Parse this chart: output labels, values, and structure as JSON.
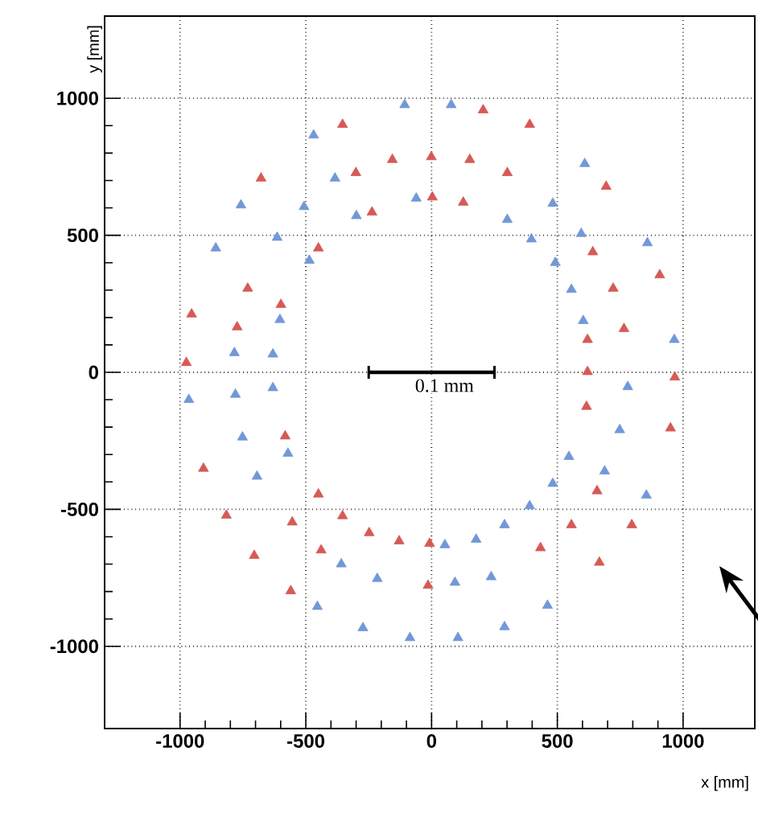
{
  "chart_data": {
    "type": "scatter",
    "xlabel": "x [mm]",
    "ylabel": "y [mm]",
    "annotations": [
      "0.1 mm"
    ],
    "xlim": [
      -1300,
      1285
    ],
    "ylim": [
      -1300,
      1300
    ],
    "xticks": [
      -1000,
      -500,
      0,
      500,
      1000
    ],
    "yticks": [
      -1000,
      -500,
      0,
      500,
      1000
    ],
    "grid": true,
    "marker": "triangle",
    "series": [
      {
        "color": "#d65a56",
        "x": [
          -354,
          -156,
          -1,
          -678,
          -301,
          3,
          -237,
          -450,
          -731,
          -954,
          -599,
          -773,
          -975,
          -582,
          -907,
          -450,
          -816,
          -554,
          -354,
          -248,
          -129,
          -8,
          -439,
          -705,
          -14,
          -560,
          620,
          967,
          616,
          950,
          658,
          556,
          796,
          433,
          667,
          205,
          390,
          152,
          301,
          694,
          126,
          641,
          907,
          722,
          620,
          765
        ],
        "values": [
          904,
          776,
          786,
          708,
          728,
          639,
          584,
          453,
          306,
          212,
          247,
          165,
          35,
          -233,
          -351,
          -445,
          -522,
          -547,
          -524,
          -586,
          -616,
          -625,
          -649,
          -669,
          -778,
          -798,
          2,
          -18,
          -125,
          -204,
          -433,
          -557,
          -557,
          -641,
          -694,
          957,
          904,
          776,
          728,
          678,
          620,
          439,
          355,
          306,
          119,
          159
        ]
      },
      {
        "color": "#7198d8",
        "x": [
          -107,
          -469,
          -384,
          -758,
          -507,
          -61,
          -299,
          -614,
          -858,
          -486,
          -603,
          -784,
          -631,
          -965,
          -780,
          -631,
          -752,
          -571,
          -694,
          53,
          -359,
          -216,
          93,
          -454,
          -273,
          -86,
          780,
          748,
          546,
          688,
          482,
          854,
          390,
          290,
          177,
          237,
          461,
          290,
          105,
          78,
          609,
          482,
          301,
          397,
          595,
          858,
          492,
          556,
          603,
          965
        ],
        "values": [
          976,
          865,
          708,
          610,
          604,
          635,
          571,
          492,
          453,
          408,
          192,
          71,
          66,
          -100,
          -81,
          -57,
          -237,
          -296,
          -380,
          -630,
          -700,
          -753,
          -767,
          -855,
          -933,
          -969,
          -53,
          -210,
          -308,
          -361,
          -406,
          -449,
          -488,
          -557,
          -610,
          -747,
          -851,
          -929,
          -969,
          976,
          761,
          616,
          557,
          486,
          506,
          472,
          400,
          302,
          188,
          119
        ]
      }
    ]
  }
}
